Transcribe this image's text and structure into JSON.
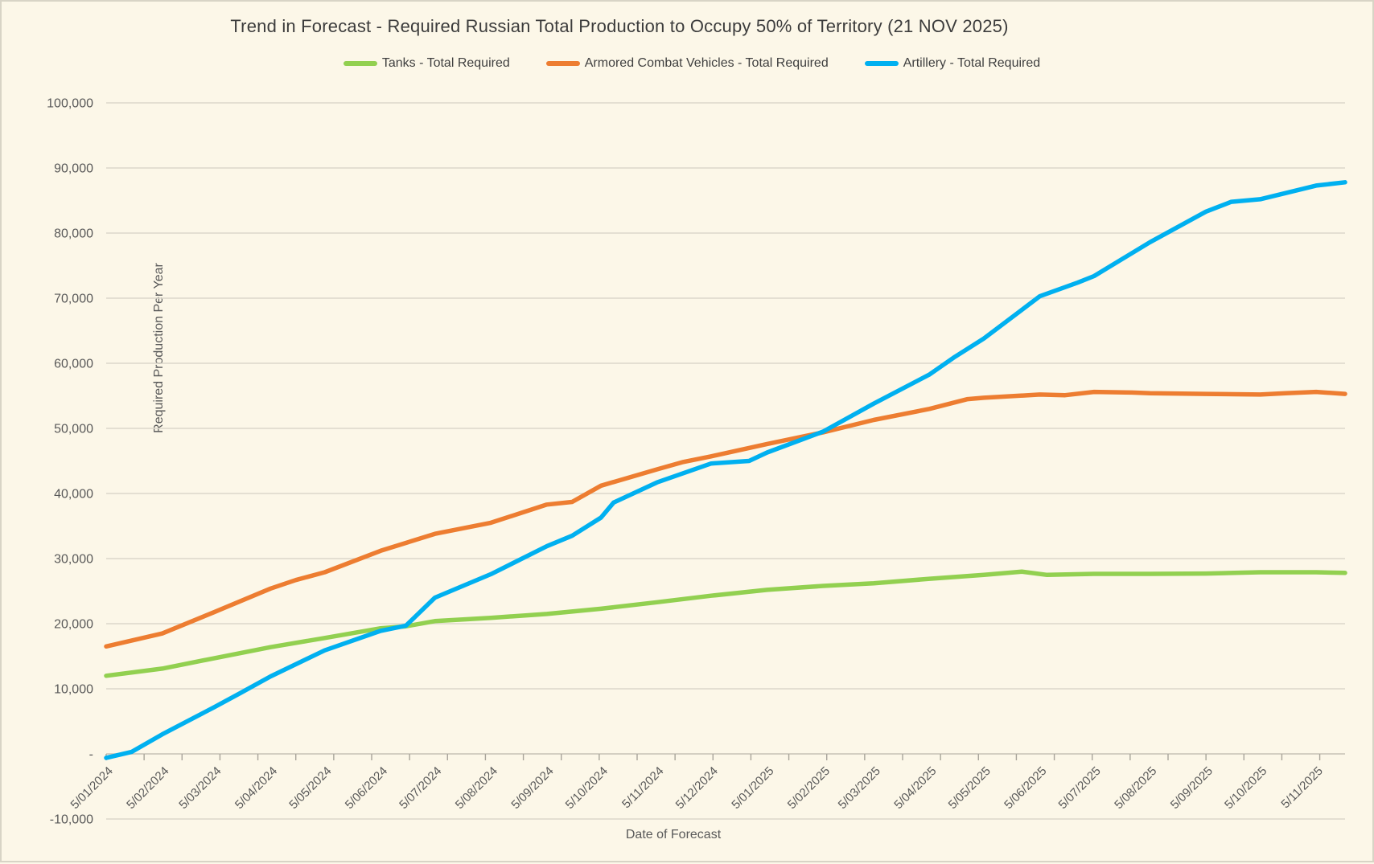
{
  "title": "Trend in Forecast - Required Russian Total Production to Occupy 50% of Territory (21 NOV 2025)",
  "colors": {
    "background": "#FCF7E8",
    "gridline": "#DBD7CB",
    "axis_line": "#C6C2B5",
    "tick_mark": "#A8A49A",
    "axis_text": "#595959",
    "title_text": "#3C3C3C",
    "tanks_green": "#92D050",
    "acv_orange": "#ED7D31",
    "artillery_blue": "#00B0F0"
  },
  "chart_data": {
    "type": "line",
    "title": "Trend in Forecast - Required Russian Total Production to Occupy 50% of Territory (21 NOV 2025)",
    "xlabel": "Date of Forecast",
    "ylabel": "Required Production Per Year",
    "ylim": [
      -10000,
      100000
    ],
    "ytick_interval": 10000,
    "ytick_labels_top_to_bottom": [
      "100,000",
      "90,000",
      "80,000",
      "70,000",
      "60,000",
      "50,000",
      "40,000",
      "30,000",
      "20,000",
      "10,000",
      "-",
      "-10,000"
    ],
    "x_start": "2024-01-05",
    "x_end": "2025-11-21",
    "xtick_minor_interval_days": 21,
    "xtick_labels": [
      "5/01/2024",
      "5/02/2024",
      "5/03/2024",
      "5/04/2024",
      "5/05/2024",
      "5/06/2024",
      "5/07/2024",
      "5/08/2024",
      "5/09/2024",
      "5/10/2024",
      "5/11/2024",
      "5/12/2024",
      "5/01/2025",
      "5/02/2025",
      "5/03/2025",
      "5/04/2025",
      "5/05/2025",
      "5/06/2025",
      "5/07/2025",
      "5/08/2025",
      "5/09/2025",
      "5/10/2025",
      "5/11/2025"
    ],
    "grid": "horizontal",
    "legend_position": "top",
    "series": [
      {
        "name": "Tanks - Total Required",
        "color": "#92D050",
        "points": [
          {
            "date": "2024-01-05",
            "value": 12000
          },
          {
            "date": "2024-02-05",
            "value": 13100
          },
          {
            "date": "2024-03-05",
            "value": 14700
          },
          {
            "date": "2024-04-05",
            "value": 16400
          },
          {
            "date": "2024-05-05",
            "value": 17800
          },
          {
            "date": "2024-06-05",
            "value": 19300
          },
          {
            "date": "2024-06-19",
            "value": 19600
          },
          {
            "date": "2024-07-05",
            "value": 20400
          },
          {
            "date": "2024-08-05",
            "value": 20900
          },
          {
            "date": "2024-09-05",
            "value": 21500
          },
          {
            "date": "2024-10-05",
            "value": 22300
          },
          {
            "date": "2024-11-05",
            "value": 23300
          },
          {
            "date": "2024-12-05",
            "value": 24300
          },
          {
            "date": "2025-01-05",
            "value": 25200
          },
          {
            "date": "2025-02-05",
            "value": 25800
          },
          {
            "date": "2025-03-05",
            "value": 26200
          },
          {
            "date": "2025-04-05",
            "value": 26900
          },
          {
            "date": "2025-05-05",
            "value": 27500
          },
          {
            "date": "2025-05-26",
            "value": 28000
          },
          {
            "date": "2025-06-09",
            "value": 27500
          },
          {
            "date": "2025-07-05",
            "value": 27650
          },
          {
            "date": "2025-08-05",
            "value": 27650
          },
          {
            "date": "2025-09-05",
            "value": 27700
          },
          {
            "date": "2025-10-05",
            "value": 27900
          },
          {
            "date": "2025-11-05",
            "value": 27900
          },
          {
            "date": "2025-11-21",
            "value": 27800
          }
        ]
      },
      {
        "name": "Armored Combat Vehicles - Total Required",
        "color": "#ED7D31",
        "points": [
          {
            "date": "2024-01-05",
            "value": 16500
          },
          {
            "date": "2024-02-05",
            "value": 18500
          },
          {
            "date": "2024-03-05",
            "value": 21800
          },
          {
            "date": "2024-04-05",
            "value": 25400
          },
          {
            "date": "2024-04-19",
            "value": 26700
          },
          {
            "date": "2024-05-05",
            "value": 27900
          },
          {
            "date": "2024-06-05",
            "value": 31200
          },
          {
            "date": "2024-07-05",
            "value": 33800
          },
          {
            "date": "2024-08-05",
            "value": 35500
          },
          {
            "date": "2024-09-05",
            "value": 38300
          },
          {
            "date": "2024-09-19",
            "value": 38700
          },
          {
            "date": "2024-10-05",
            "value": 41200
          },
          {
            "date": "2024-11-05",
            "value": 43700
          },
          {
            "date": "2024-11-19",
            "value": 44800
          },
          {
            "date": "2024-12-05",
            "value": 45700
          },
          {
            "date": "2025-01-05",
            "value": 47600
          },
          {
            "date": "2025-02-05",
            "value": 49400
          },
          {
            "date": "2025-03-05",
            "value": 51300
          },
          {
            "date": "2025-04-05",
            "value": 53000
          },
          {
            "date": "2025-04-26",
            "value": 54500
          },
          {
            "date": "2025-05-05",
            "value": 54700
          },
          {
            "date": "2025-06-05",
            "value": 55200
          },
          {
            "date": "2025-06-19",
            "value": 55100
          },
          {
            "date": "2025-07-05",
            "value": 55600
          },
          {
            "date": "2025-07-26",
            "value": 55500
          },
          {
            "date": "2025-08-05",
            "value": 55400
          },
          {
            "date": "2025-09-05",
            "value": 55300
          },
          {
            "date": "2025-10-05",
            "value": 55200
          },
          {
            "date": "2025-10-19",
            "value": 55400
          },
          {
            "date": "2025-11-05",
            "value": 55600
          },
          {
            "date": "2025-11-21",
            "value": 55300
          }
        ]
      },
      {
        "name": "Artillery - Total Required",
        "color": "#00B0F0",
        "points": [
          {
            "date": "2024-01-05",
            "value": -600
          },
          {
            "date": "2024-01-19",
            "value": 300
          },
          {
            "date": "2024-02-05",
            "value": 3000
          },
          {
            "date": "2024-03-05",
            "value": 7200
          },
          {
            "date": "2024-03-19",
            "value": 9300
          },
          {
            "date": "2024-04-05",
            "value": 11900
          },
          {
            "date": "2024-05-05",
            "value": 15900
          },
          {
            "date": "2024-06-05",
            "value": 18900
          },
          {
            "date": "2024-06-19",
            "value": 19700
          },
          {
            "date": "2024-07-05",
            "value": 24000
          },
          {
            "date": "2024-08-05",
            "value": 27600
          },
          {
            "date": "2024-09-05",
            "value": 31900
          },
          {
            "date": "2024-09-19",
            "value": 33500
          },
          {
            "date": "2024-10-05",
            "value": 36300
          },
          {
            "date": "2024-10-12",
            "value": 38600
          },
          {
            "date": "2024-11-05",
            "value": 41700
          },
          {
            "date": "2024-12-05",
            "value": 44600
          },
          {
            "date": "2024-12-26",
            "value": 45000
          },
          {
            "date": "2025-01-05",
            "value": 46300
          },
          {
            "date": "2025-02-05",
            "value": 49500
          },
          {
            "date": "2025-03-05",
            "value": 53800
          },
          {
            "date": "2025-04-05",
            "value": 58300
          },
          {
            "date": "2025-04-19",
            "value": 61000
          },
          {
            "date": "2025-05-05",
            "value": 63800
          },
          {
            "date": "2025-06-05",
            "value": 70300
          },
          {
            "date": "2025-06-26",
            "value": 72400
          },
          {
            "date": "2025-07-05",
            "value": 73400
          },
          {
            "date": "2025-08-05",
            "value": 78600
          },
          {
            "date": "2025-09-05",
            "value": 83300
          },
          {
            "date": "2025-09-19",
            "value": 84800
          },
          {
            "date": "2025-10-05",
            "value": 85200
          },
          {
            "date": "2025-11-05",
            "value": 87300
          },
          {
            "date": "2025-11-21",
            "value": 87800
          }
        ]
      }
    ]
  }
}
